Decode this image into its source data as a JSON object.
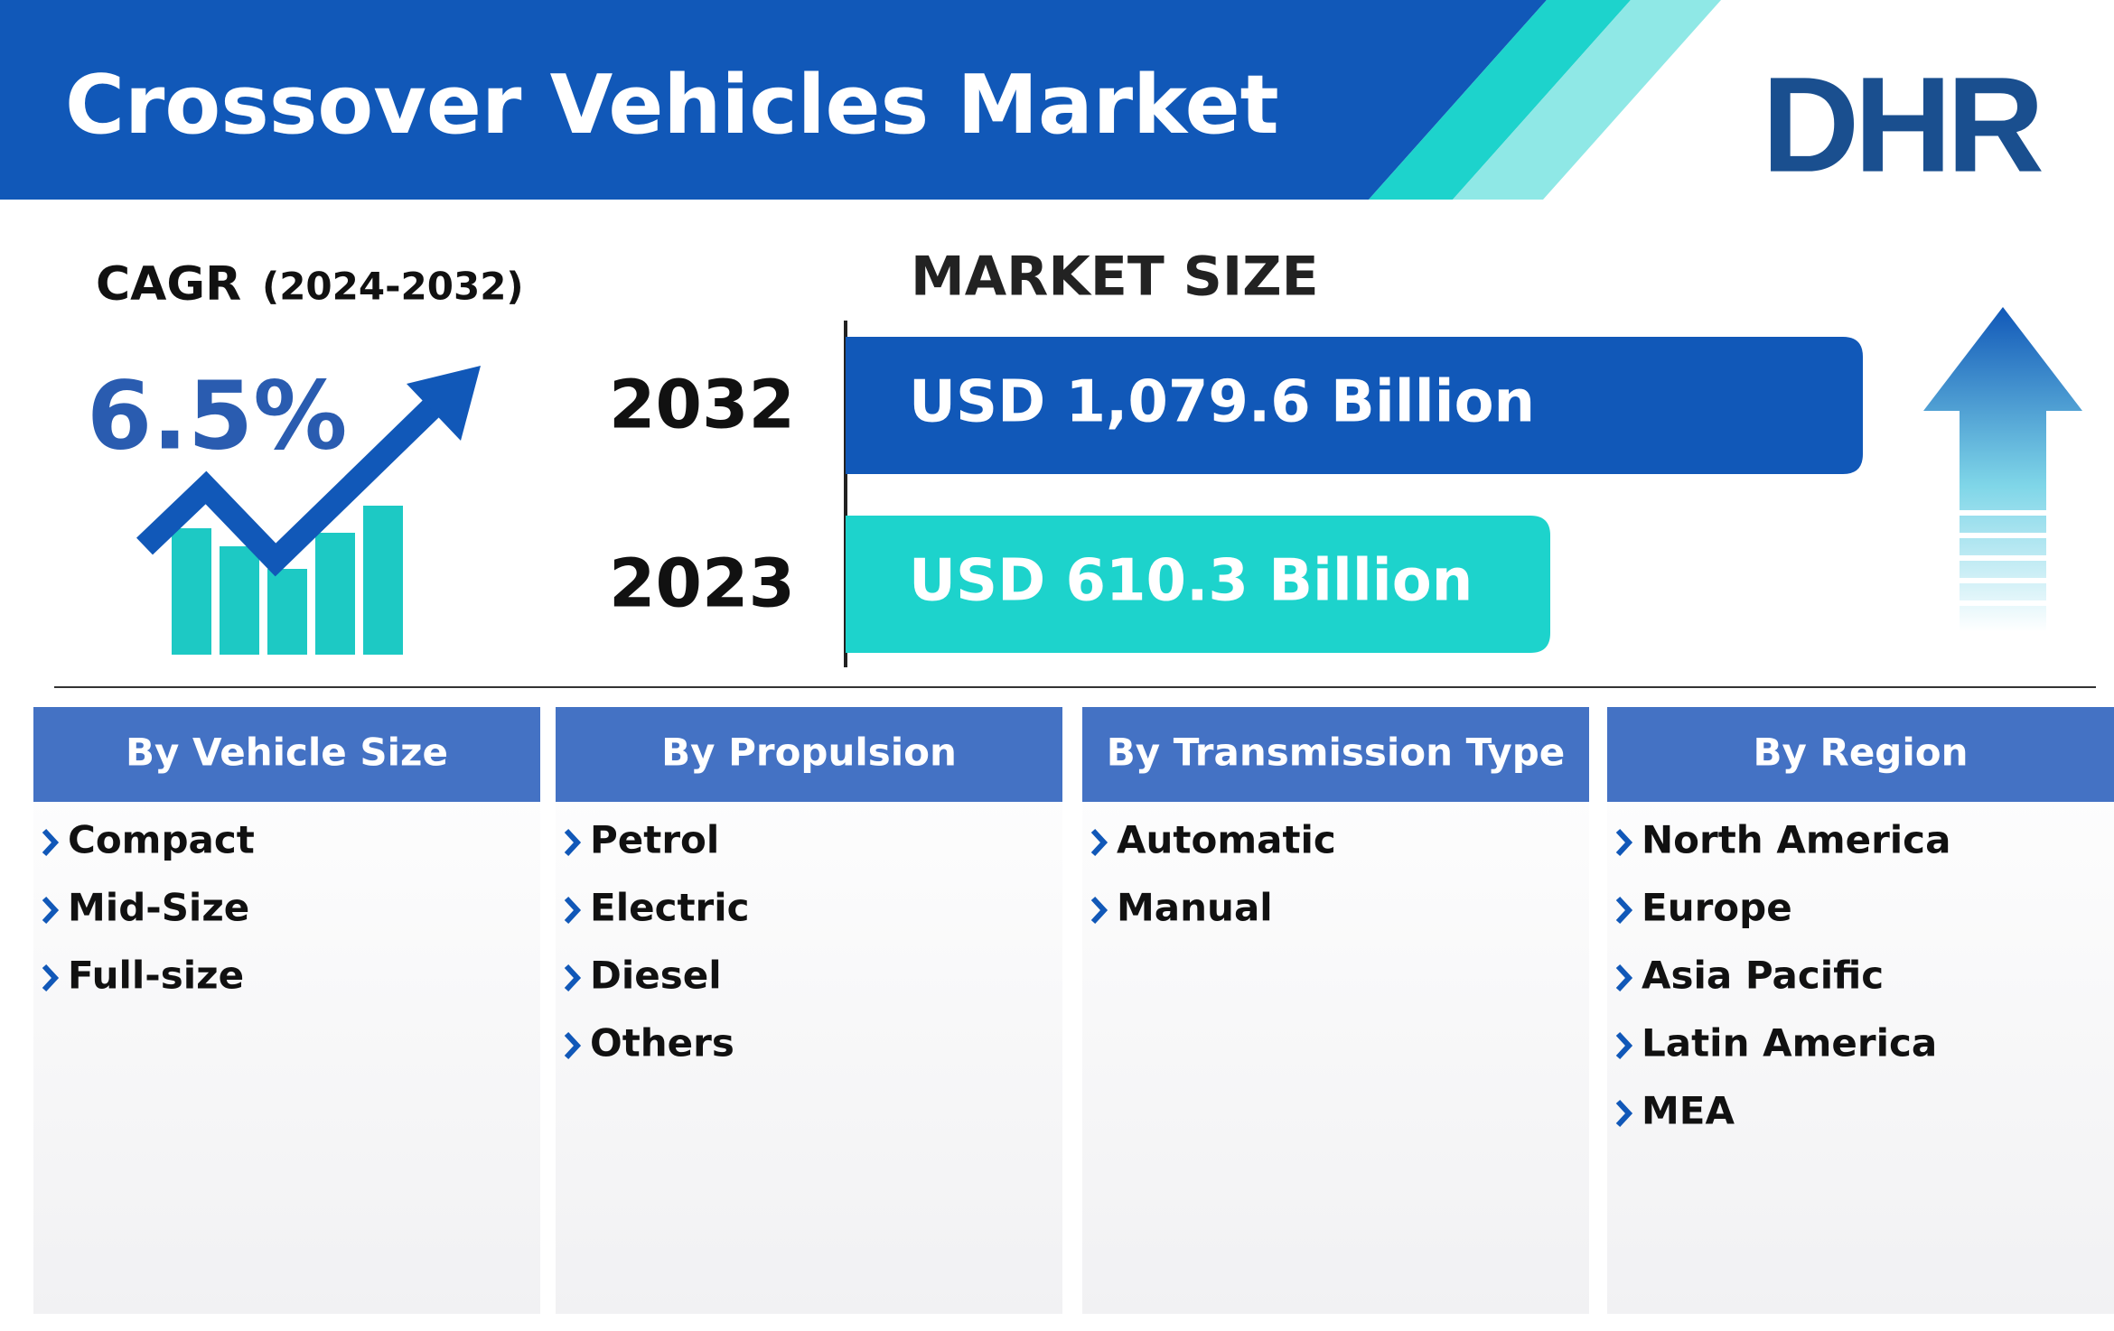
{
  "header": {
    "title": "Crossover Vehicles Market",
    "logo": "DHR"
  },
  "cagr": {
    "label": "CAGR",
    "period": "(2024-2032)",
    "value": "6.5%"
  },
  "market_size": {
    "title": "MARKET SIZE",
    "rows": [
      {
        "year": "2032",
        "value": "USD 1,079.6 Billion"
      },
      {
        "year": "2023",
        "value": "USD 610.3 Billion"
      }
    ]
  },
  "segments": [
    {
      "title": "By Vehicle Size",
      "items": [
        "Compact",
        "Mid-Size",
        "Full-size"
      ]
    },
    {
      "title": "By Propulsion",
      "items": [
        "Petrol",
        "Electric",
        "Diesel",
        "Others"
      ]
    },
    {
      "title": "By Transmission Type",
      "items": [
        "Automatic",
        "Manual"
      ]
    },
    {
      "title": "By Region",
      "items": [
        "North America",
        "Europe",
        "Asia Pacific",
        "Latin America",
        "MEA"
      ]
    }
  ]
}
